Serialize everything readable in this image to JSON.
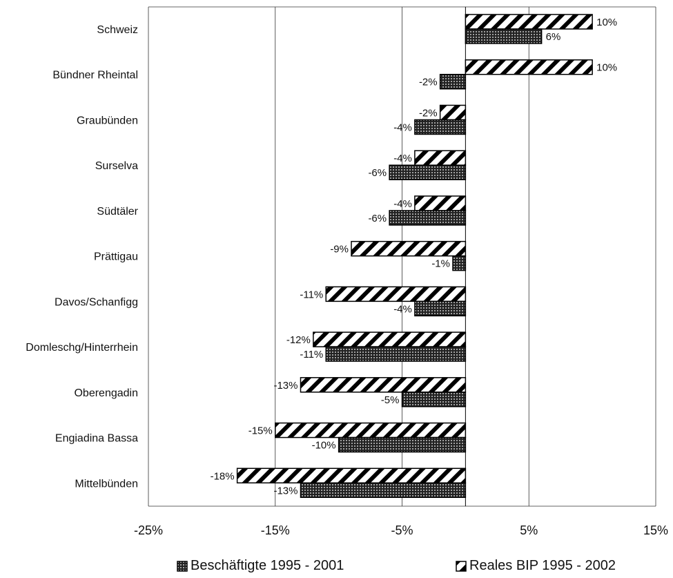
{
  "chart_data": {
    "type": "bar",
    "orientation": "horizontal",
    "categories": [
      "Schweiz",
      "Bündner Rheintal",
      "Graubünden",
      "Surselva",
      "Südtäler",
      "Prättigau",
      "Davos/Schanfigg",
      "Domleschg/Hinterrhein",
      "Oberengadin",
      "Engiadina Bassa",
      "Mittelbünden"
    ],
    "series": [
      {
        "name": "Reales BIP 1995 - 2002",
        "pattern": "diagonal-hatch",
        "values": [
          10,
          10,
          -2,
          -4,
          -4,
          -9,
          -11,
          -12,
          -13,
          -15,
          -18
        ],
        "labels": [
          "10%",
          "10%",
          "-2%",
          "-4%",
          "-4%",
          "-9%",
          "-11%",
          "-12%",
          "-13%",
          "-15%",
          "-18%"
        ]
      },
      {
        "name": "Beschäftigte 1995 - 2001",
        "pattern": "dotted",
        "values": [
          6,
          -2,
          -4,
          -6,
          -6,
          -1,
          -4,
          -11,
          -5,
          -10,
          -13
        ],
        "labels": [
          "6%",
          "-2%",
          "-4%",
          "-6%",
          "-6%",
          "-1%",
          "-4%",
          "-11%",
          "-5%",
          "-10%",
          "-13%"
        ]
      }
    ],
    "xlim": [
      -25,
      15
    ],
    "xticks": [
      -25,
      -15,
      -5,
      5,
      15
    ],
    "xtick_labels": [
      "-25%",
      "-15%",
      "-5%",
      "5%",
      "15%"
    ],
    "grid": true,
    "legend_position": "bottom",
    "colors": {
      "bar_edge": "#000000",
      "grid": "#333333",
      "background": "#ffffff"
    }
  },
  "legend": {
    "beschaeftigte": "Beschäftigte 1995 - 2001",
    "bip": "Reales BIP 1995 - 2002"
  }
}
